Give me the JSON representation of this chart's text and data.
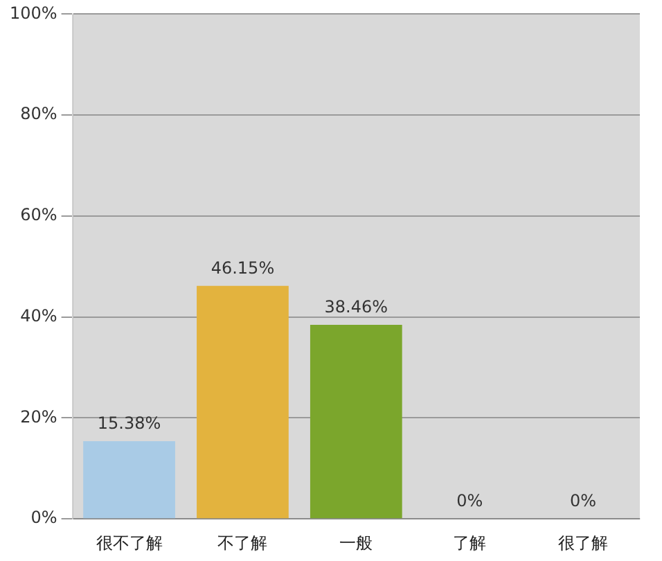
{
  "chart_data": {
    "type": "bar",
    "categories": [
      "很不了解",
      "不了解",
      "一般",
      "了解",
      "很了解"
    ],
    "values": [
      15.38,
      46.15,
      38.46,
      0,
      0
    ],
    "value_labels": [
      "15.38%",
      "46.15%",
      "38.46%",
      "0%",
      "0%"
    ],
    "colors": [
      "#a9cbe6",
      "#e3b33e",
      "#7ba62c",
      "#f2a584",
      "#3fa7ae"
    ],
    "ylim": [
      0,
      100
    ],
    "yticks": [
      {
        "value": 0,
        "label": "0%"
      },
      {
        "value": 20,
        "label": "20%"
      },
      {
        "value": 40,
        "label": "40%"
      },
      {
        "value": 60,
        "label": "60%"
      },
      {
        "value": 80,
        "label": "80%"
      },
      {
        "value": 100,
        "label": "100%"
      }
    ],
    "grid": "y"
  }
}
